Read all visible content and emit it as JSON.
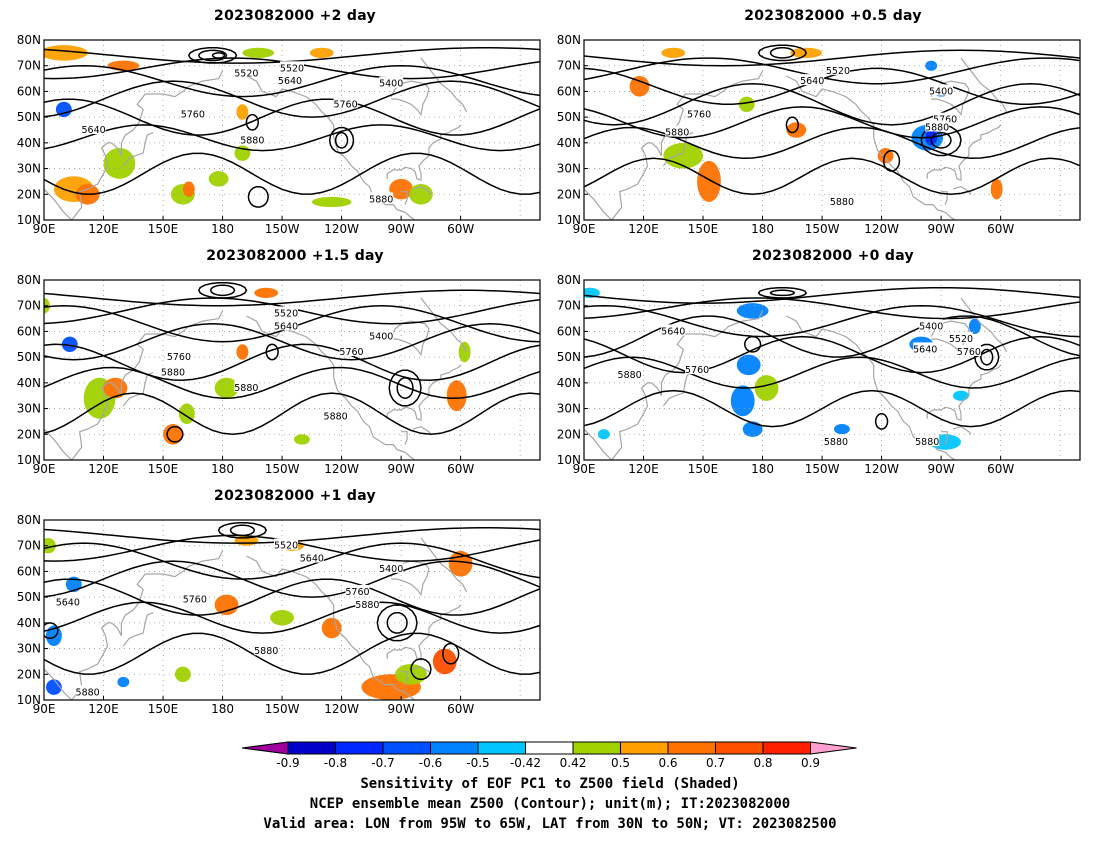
{
  "panels": [
    {
      "id": "p2",
      "title": "2023082000  +2 day",
      "labels": [
        {
          "t": "5520",
          "lon": -168,
          "lat": 67
        },
        {
          "t": "5520",
          "lon": -145,
          "lat": 69
        },
        {
          "t": "5640",
          "lon": -146,
          "lat": 64
        },
        {
          "t": "5400",
          "lon": -95,
          "lat": 63
        },
        {
          "t": "5760",
          "lon": -118,
          "lat": 55
        },
        {
          "t": "5760",
          "lon": 165,
          "lat": 51
        },
        {
          "t": "5640",
          "lon": 115,
          "lat": 45
        },
        {
          "t": "5880",
          "lon": -165,
          "lat": 41
        },
        {
          "t": "5880",
          "lon": -100,
          "lat": 18
        }
      ]
    },
    {
      "id": "p05",
      "title": "2023082000  +0.5 day",
      "labels": [
        {
          "t": "5520",
          "lon": -142,
          "lat": 68
        },
        {
          "t": "5640",
          "lon": -155,
          "lat": 64
        },
        {
          "t": "5400",
          "lon": -90,
          "lat": 60
        },
        {
          "t": "5760",
          "lon": 148,
          "lat": 51
        },
        {
          "t": "5760",
          "lon": -88,
          "lat": 49
        },
        {
          "t": "5880",
          "lon": -92,
          "lat": 46
        },
        {
          "t": "5880",
          "lon": 137,
          "lat": 44
        },
        {
          "t": "5880",
          "lon": -140,
          "lat": 17
        }
      ]
    },
    {
      "id": "p15",
      "title": "2023082000  +1.5 day",
      "labels": [
        {
          "t": "5520",
          "lon": -148,
          "lat": 67
        },
        {
          "t": "5640",
          "lon": -148,
          "lat": 62
        },
        {
          "t": "5400",
          "lon": -100,
          "lat": 58
        },
        {
          "t": "5760",
          "lon": -115,
          "lat": 52
        },
        {
          "t": "5760",
          "lon": 158,
          "lat": 50
        },
        {
          "t": "5880",
          "lon": 155,
          "lat": 44
        },
        {
          "t": "5880",
          "lon": -168,
          "lat": 38
        },
        {
          "t": "5880",
          "lon": -123,
          "lat": 27
        }
      ]
    },
    {
      "id": "p0",
      "title": "2023082000  +0 day",
      "labels": [
        {
          "t": "5640",
          "lon": 135,
          "lat": 60
        },
        {
          "t": "5400",
          "lon": -95,
          "lat": 62
        },
        {
          "t": "5520",
          "lon": -80,
          "lat": 57
        },
        {
          "t": "5640",
          "lon": -98,
          "lat": 53
        },
        {
          "t": "5760",
          "lon": -76,
          "lat": 52
        },
        {
          "t": "5760",
          "lon": 147,
          "lat": 45
        },
        {
          "t": "5880",
          "lon": 113,
          "lat": 43
        },
        {
          "t": "5880",
          "lon": -143,
          "lat": 17
        },
        {
          "t": "5880",
          "lon": -97,
          "lat": 17
        }
      ]
    },
    {
      "id": "p1",
      "title": "2023082000  +1 day",
      "labels": [
        {
          "t": "5520",
          "lon": -148,
          "lat": 70
        },
        {
          "t": "5640",
          "lon": -135,
          "lat": 65
        },
        {
          "t": "5400",
          "lon": -95,
          "lat": 61
        },
        {
          "t": "5640",
          "lon": 102,
          "lat": 48
        },
        {
          "t": "5760",
          "lon": 166,
          "lat": 49
        },
        {
          "t": "5760",
          "lon": -112,
          "lat": 52
        },
        {
          "t": "5880",
          "lon": -107,
          "lat": 47
        },
        {
          "t": "5880",
          "lon": -158,
          "lat": 29
        },
        {
          "t": "5880",
          "lon": 112,
          "lat": 13
        }
      ]
    }
  ],
  "axes": {
    "x_ticks": [
      "90E",
      "120E",
      "150E",
      "180",
      "150W",
      "120W",
      "90W",
      "60W"
    ],
    "y_ticks": [
      "10N",
      "20N",
      "30N",
      "40N",
      "50N",
      "60N",
      "70N",
      "80N"
    ]
  },
  "colorbar": {
    "colors": [
      "#a0009c",
      "#0000c8",
      "#0026ff",
      "#0050ff",
      "#0082ff",
      "#00c6ff",
      "#ffffff",
      "#a0d200",
      "#ffa000",
      "#ff7200",
      "#ff5000",
      "#ff2000",
      "#ff0000",
      "#ff9fcf"
    ],
    "labels": [
      "-0.9",
      "-0.8",
      "-0.7",
      "-0.6",
      "-0.5",
      "-0.42",
      "0.42",
      "0.5",
      "0.6",
      "0.7",
      "0.8",
      "0.9"
    ]
  },
  "footer": {
    "line1": "Sensitivity of EOF PC1 to Z500 field (Shaded)",
    "line2": "NCEP ensemble mean Z500 (Contour); unit(m); IT:2023082000",
    "line3": "Valid area: LON from 95W to 65W, LAT from 30N to 50N; VT: 2023082500"
  }
}
